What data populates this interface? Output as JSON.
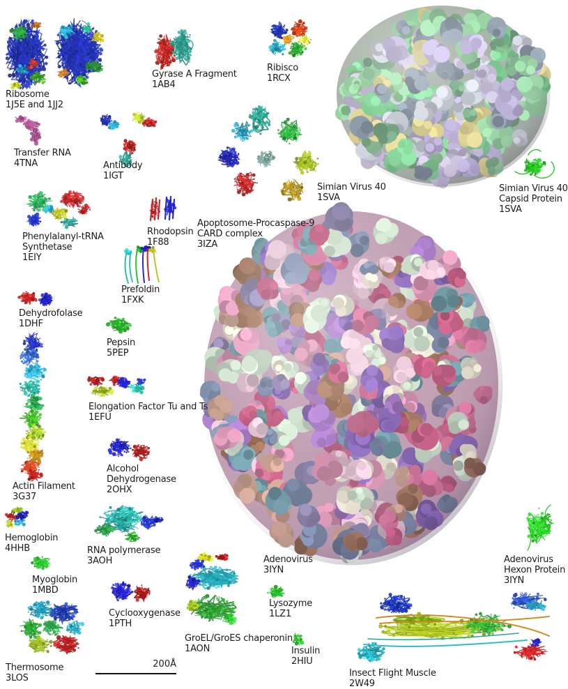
{
  "scale_bar": {
    "label": "200Å"
  },
  "palette": {
    "background": "#ffffff",
    "label_text": "#1a1a1a",
    "ribbon_blue": "#2433b4",
    "ribbon_green": "#2fae35",
    "ribbon_red": "#c02020",
    "ribbon_cyan": "#28a7c8",
    "ribbon_yellow": "#b8c020",
    "ribbon_orange": "#cc8816",
    "ribbon_magenta": "#b3589a",
    "sv40_green": "#9ad3a4",
    "sv40_lavender": "#b9afd4",
    "sv40_khaki": "#d4ca8e",
    "adeno_pink": "#c86f92",
    "adeno_purple": "#a77bc4",
    "adeno_cream": "#e2dccb"
  },
  "molecules": [
    {
      "id": "ribosome",
      "name_lines": [
        "Ribosome"
      ],
      "pdb": "1J5E and 1JJ2"
    },
    {
      "id": "gyrase",
      "name_lines": [
        "Gyrase A Fragment"
      ],
      "pdb": "1AB4"
    },
    {
      "id": "ribisco",
      "name_lines": [
        "Ribisco"
      ],
      "pdb": "1RCX"
    },
    {
      "id": "sv40",
      "name_lines": [
        "Simian Virus 40"
      ],
      "pdb": "1SVA"
    },
    {
      "id": "sv40-capsid",
      "name_lines": [
        "Simian Virus 40",
        "Capsid Protein"
      ],
      "pdb": "1SVA"
    },
    {
      "id": "trna",
      "name_lines": [
        "Transfer RNA"
      ],
      "pdb": "4TNA"
    },
    {
      "id": "antibody",
      "name_lines": [
        "Antibody"
      ],
      "pdb": "1IGT"
    },
    {
      "id": "apoptosome",
      "name_lines": [
        "Apoptosome-Procaspase-9",
        "CARD complex"
      ],
      "pdb": "3IZA"
    },
    {
      "id": "phe-trna-synthetase",
      "name_lines": [
        "Phenylalanyl-tRNA",
        "Synthetase"
      ],
      "pdb": "1EIY"
    },
    {
      "id": "rhodopsin",
      "name_lines": [
        "Rhodopsin"
      ],
      "pdb": "1F88"
    },
    {
      "id": "prefoldin",
      "name_lines": [
        "Prefoldin"
      ],
      "pdb": "1FXK"
    },
    {
      "id": "dehydrofolase",
      "name_lines": [
        "Dehydrofolase"
      ],
      "pdb": "1DHF"
    },
    {
      "id": "pepsin",
      "name_lines": [
        "Pepsin"
      ],
      "pdb": "5PEP"
    },
    {
      "id": "elongation-factor",
      "name_lines": [
        "Elongation Factor Tu and Ts"
      ],
      "pdb": "1EFU"
    },
    {
      "id": "alcohol-dehydrogenase",
      "name_lines": [
        "Alcohol",
        "Dehydrogenase"
      ],
      "pdb": "2OHX"
    },
    {
      "id": "actin-filament",
      "name_lines": [
        "Actin Filament"
      ],
      "pdb": "3G37"
    },
    {
      "id": "hemoglobin",
      "name_lines": [
        "Hemoglobin"
      ],
      "pdb": "4HHB"
    },
    {
      "id": "rna-polymerase",
      "name_lines": [
        "RNA polymerase"
      ],
      "pdb": "3AOH"
    },
    {
      "id": "myoglobin",
      "name_lines": [
        "Myoglobin"
      ],
      "pdb": "1MBD"
    },
    {
      "id": "cyclooxygenase",
      "name_lines": [
        "Cyclooxygenase"
      ],
      "pdb": "1PTH"
    },
    {
      "id": "groel-groes",
      "name_lines": [
        "GroEL/GroES chaperonin"
      ],
      "pdb": "1AON"
    },
    {
      "id": "adenovirus",
      "name_lines": [
        "Adenovirus"
      ],
      "pdb": "3IYN"
    },
    {
      "id": "lysozyme",
      "name_lines": [
        "Lysozyme"
      ],
      "pdb": "1LZ1"
    },
    {
      "id": "insulin",
      "name_lines": [
        "Insulin"
      ],
      "pdb": "2HIU"
    },
    {
      "id": "adenovirus-hexon",
      "name_lines": [
        "Adenovirus",
        "Hexon Protein"
      ],
      "pdb": "3IYN"
    },
    {
      "id": "insect-flight-muscle",
      "name_lines": [
        "Insect Flight Muscle"
      ],
      "pdb": "2W49"
    },
    {
      "id": "thermosome",
      "name_lines": [
        "Thermosome"
      ],
      "pdb": "3LOS"
    }
  ]
}
